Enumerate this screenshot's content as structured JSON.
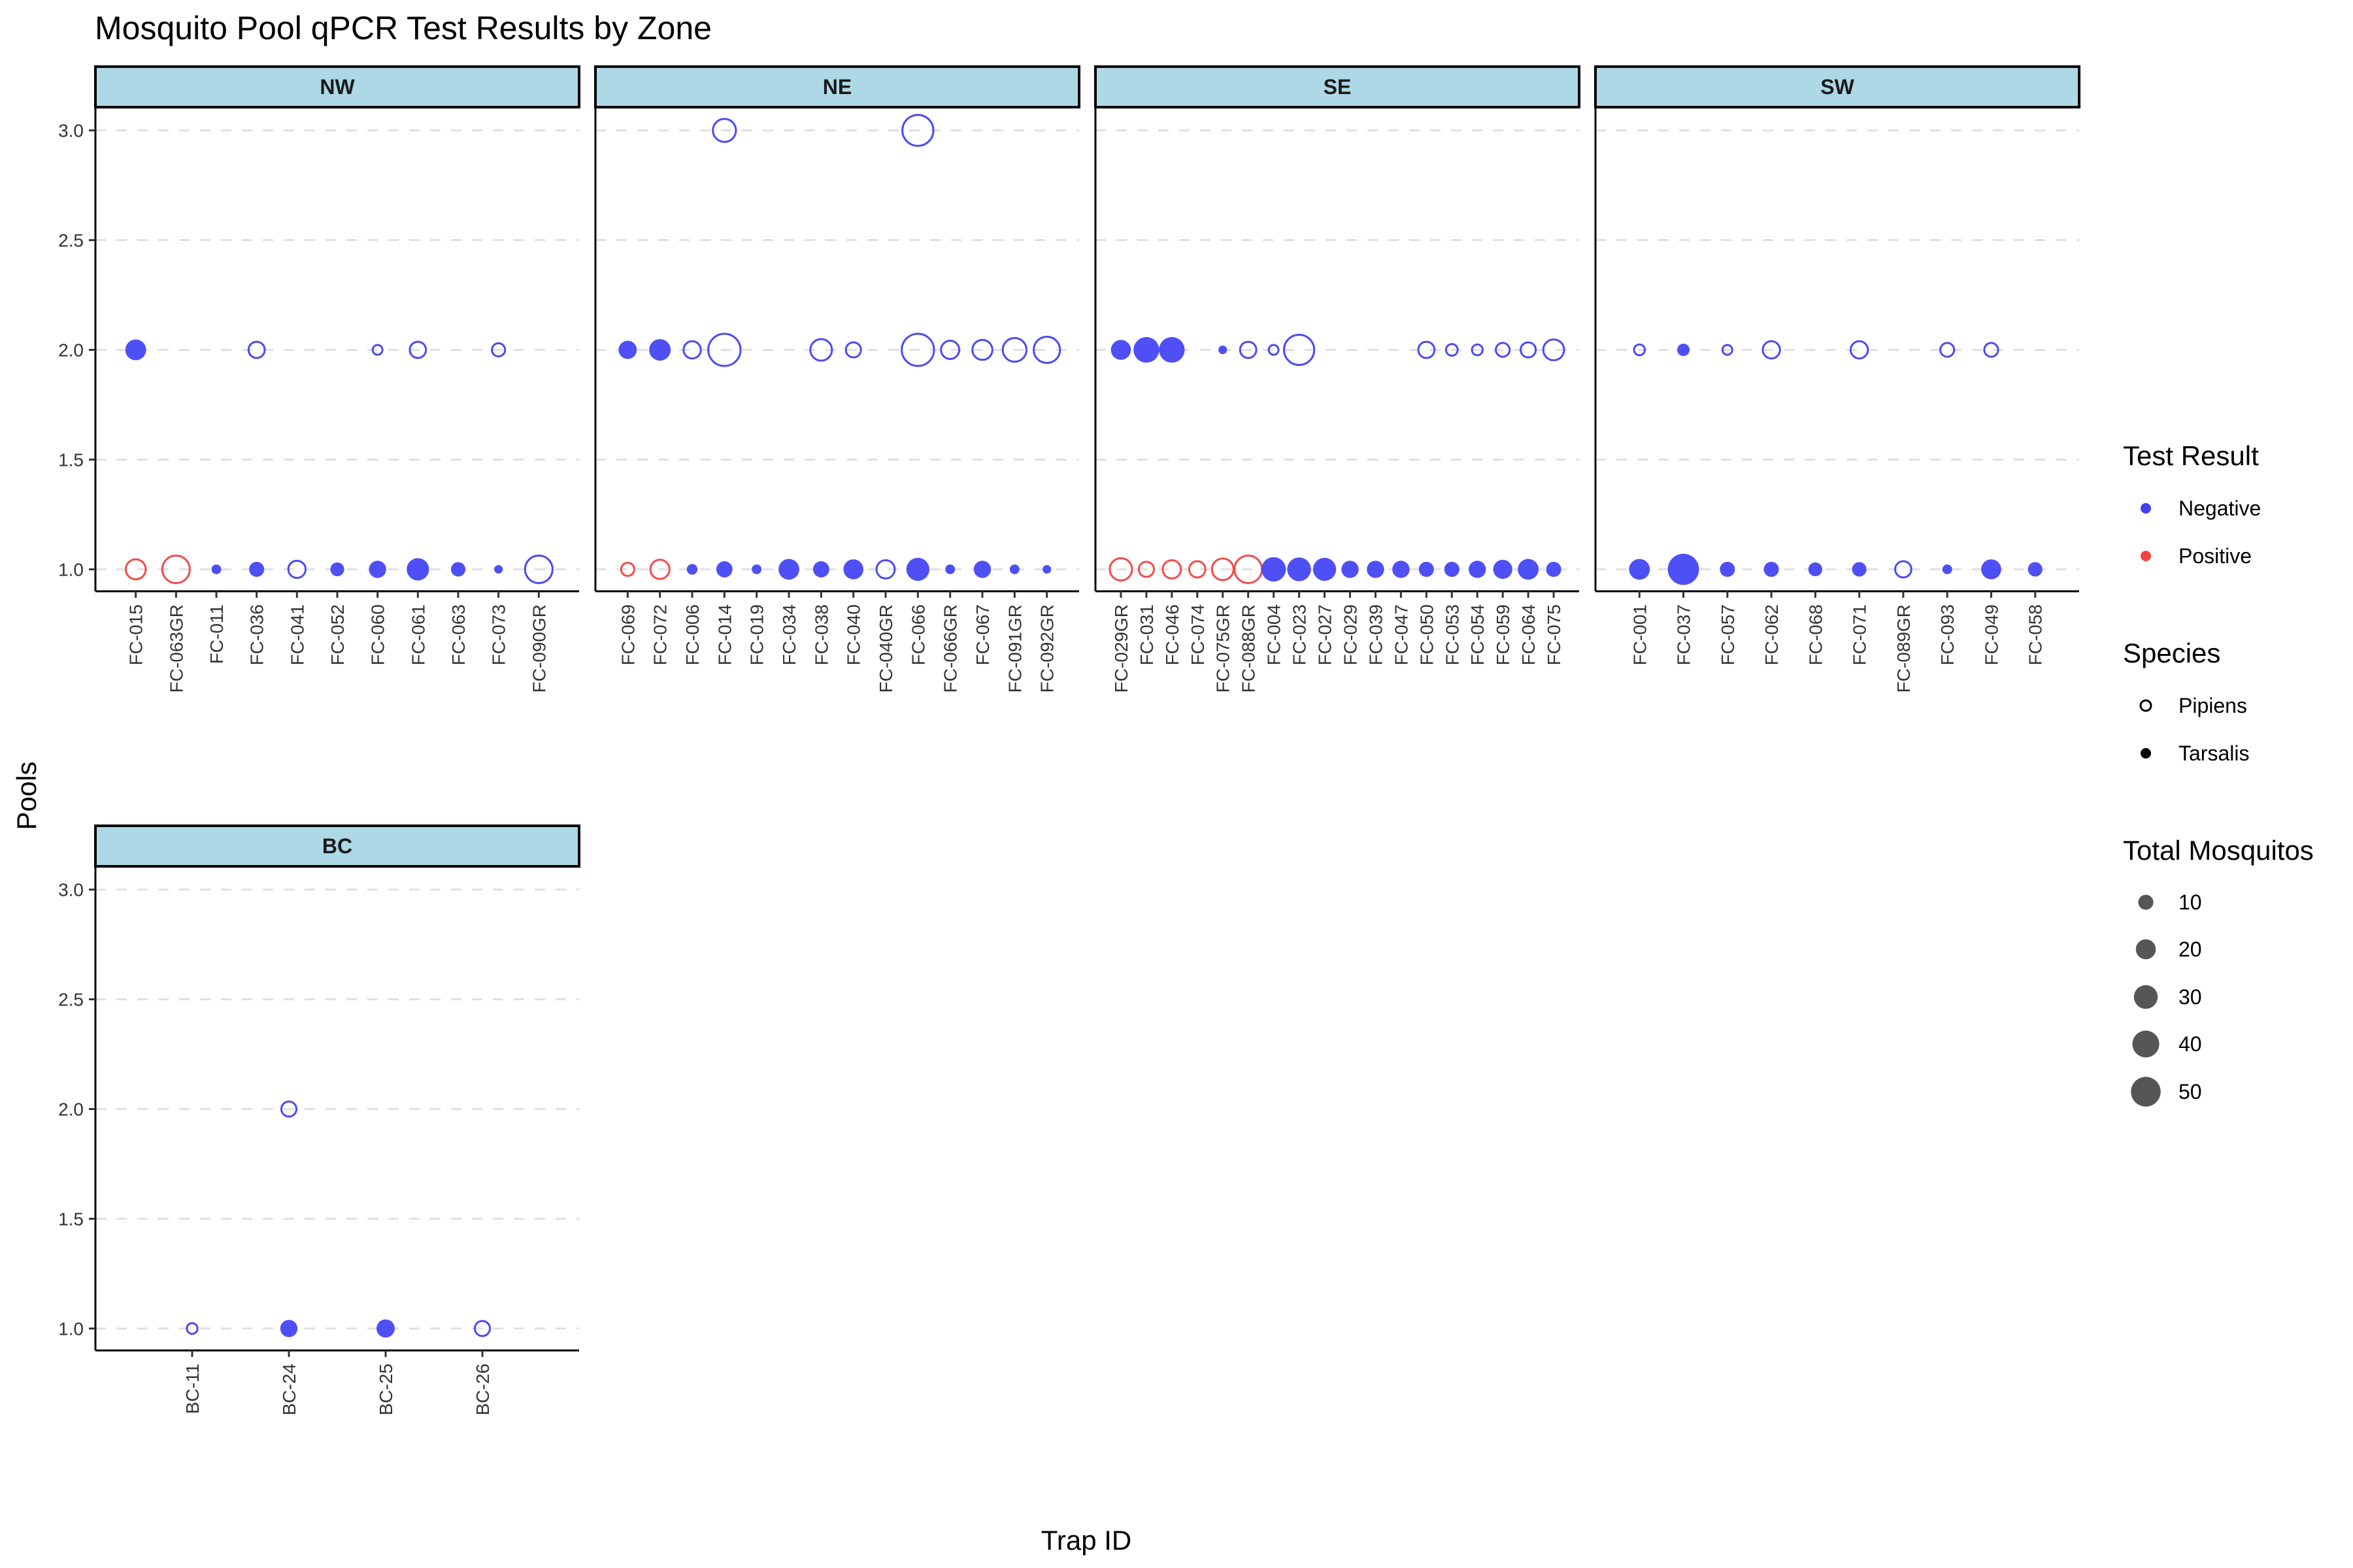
{
  "colors": {
    "Negative": "#4040f5",
    "Positive": "#f54040",
    "strip_fill": "#add8e6",
    "grid": "#e0e0e0",
    "size_legend": "#4d4d4d"
  },
  "chart_data": {
    "type": "scatter",
    "title": "Mosquito Pool qPCR Test Results by Zone",
    "xlabel": "Trap ID",
    "ylabel": "Pools",
    "ylim": [
      0.9,
      3.1
    ],
    "y_ticks": [
      "1.0",
      "1.5",
      "2.0",
      "2.5",
      "3.0"
    ],
    "grid": "horizontal dashed major lines",
    "legend_position": "right",
    "legends": {
      "result": {
        "title": "Test Result",
        "entries": [
          "Negative",
          "Positive"
        ]
      },
      "species": {
        "title": "Species",
        "entries": [
          "Pipiens",
          "Tarsalis"
        ]
      },
      "size": {
        "title": "Total Mosquitos",
        "entries": [
          10,
          20,
          30,
          40,
          50
        ]
      }
    },
    "panels": [
      {
        "zone": "NW",
        "traps": [
          "FC-015",
          "FC-063GR",
          "FC-011",
          "FC-036",
          "FC-041",
          "FC-052",
          "FC-060",
          "FC-061",
          "FC-063",
          "FC-073",
          "FC-090GR"
        ],
        "points": [
          {
            "trap": "FC-015",
            "pools": 2,
            "total": 22,
            "species": "Tarsalis",
            "result": "Negative"
          },
          {
            "trap": "FC-036",
            "pools": 2,
            "total": 12,
            "species": "Pipiens",
            "result": "Negative"
          },
          {
            "trap": "FC-060",
            "pools": 2,
            "total": 3,
            "species": "Pipiens",
            "result": "Negative"
          },
          {
            "trap": "FC-061",
            "pools": 2,
            "total": 12,
            "species": "Pipiens",
            "result": "Negative"
          },
          {
            "trap": "FC-073",
            "pools": 2,
            "total": 7,
            "species": "Pipiens",
            "result": "Negative"
          },
          {
            "trap": "FC-015",
            "pools": 1,
            "total": 20,
            "species": "Pipiens",
            "result": "Positive"
          },
          {
            "trap": "FC-063GR",
            "pools": 1,
            "total": 42,
            "species": "Pipiens",
            "result": "Positive"
          },
          {
            "trap": "FC-011",
            "pools": 1,
            "total": 3,
            "species": "Tarsalis",
            "result": "Negative"
          },
          {
            "trap": "FC-036",
            "pools": 1,
            "total": 10,
            "species": "Tarsalis",
            "result": "Negative"
          },
          {
            "trap": "FC-041",
            "pools": 1,
            "total": 14,
            "species": "Pipiens",
            "result": "Negative"
          },
          {
            "trap": "FC-052",
            "pools": 1,
            "total": 8,
            "species": "Tarsalis",
            "result": "Negative"
          },
          {
            "trap": "FC-060",
            "pools": 1,
            "total": 14,
            "species": "Tarsalis",
            "result": "Negative"
          },
          {
            "trap": "FC-061",
            "pools": 1,
            "total": 26,
            "species": "Tarsalis",
            "result": "Negative"
          },
          {
            "trap": "FC-063",
            "pools": 1,
            "total": 9,
            "species": "Tarsalis",
            "result": "Negative"
          },
          {
            "trap": "FC-073",
            "pools": 1,
            "total": 2,
            "species": "Tarsalis",
            "result": "Negative"
          },
          {
            "trap": "FC-090GR",
            "pools": 1,
            "total": 42,
            "species": "Pipiens",
            "result": "Negative"
          }
        ]
      },
      {
        "zone": "NE",
        "traps": [
          "FC-069",
          "FC-072",
          "FC-006",
          "FC-014",
          "FC-019",
          "FC-034",
          "FC-038",
          "FC-040",
          "FC-040GR",
          "FC-066",
          "FC-066GR",
          "FC-067",
          "FC-091GR",
          "FC-092GR"
        ],
        "points": [
          {
            "trap": "FC-014",
            "pools": 3,
            "total": 28,
            "species": "Pipiens",
            "result": "Negative"
          },
          {
            "trap": "FC-066",
            "pools": 3,
            "total": 55,
            "species": "Pipiens",
            "result": "Negative"
          },
          {
            "trap": "FC-069",
            "pools": 2,
            "total": 16,
            "species": "Tarsalis",
            "result": "Negative"
          },
          {
            "trap": "FC-072",
            "pools": 2,
            "total": 24,
            "species": "Tarsalis",
            "result": "Negative"
          },
          {
            "trap": "FC-006",
            "pools": 2,
            "total": 14,
            "species": "Pipiens",
            "result": "Negative"
          },
          {
            "trap": "FC-014",
            "pools": 2,
            "total": 60,
            "species": "Pipiens",
            "result": "Negative"
          },
          {
            "trap": "FC-038",
            "pools": 2,
            "total": 24,
            "species": "Pipiens",
            "result": "Negative"
          },
          {
            "trap": "FC-040",
            "pools": 2,
            "total": 10,
            "species": "Pipiens",
            "result": "Negative"
          },
          {
            "trap": "FC-066",
            "pools": 2,
            "total": 60,
            "species": "Pipiens",
            "result": "Negative"
          },
          {
            "trap": "FC-066GR",
            "pools": 2,
            "total": 16,
            "species": "Pipiens",
            "result": "Negative"
          },
          {
            "trap": "FC-067",
            "pools": 2,
            "total": 20,
            "species": "Pipiens",
            "result": "Negative"
          },
          {
            "trap": "FC-091GR",
            "pools": 2,
            "total": 30,
            "species": "Pipiens",
            "result": "Negative"
          },
          {
            "trap": "FC-092GR",
            "pools": 2,
            "total": 38,
            "species": "Pipiens",
            "result": "Negative"
          },
          {
            "trap": "FC-069",
            "pools": 1,
            "total": 7,
            "species": "Pipiens",
            "result": "Positive"
          },
          {
            "trap": "FC-072",
            "pools": 1,
            "total": 18,
            "species": "Pipiens",
            "result": "Positive"
          },
          {
            "trap": "FC-006",
            "pools": 1,
            "total": 4,
            "species": "Tarsalis",
            "result": "Negative"
          },
          {
            "trap": "FC-014",
            "pools": 1,
            "total": 12,
            "species": "Tarsalis",
            "result": "Negative"
          },
          {
            "trap": "FC-019",
            "pools": 1,
            "total": 3,
            "species": "Tarsalis",
            "result": "Negative"
          },
          {
            "trap": "FC-034",
            "pools": 1,
            "total": 22,
            "species": "Tarsalis",
            "result": "Negative"
          },
          {
            "trap": "FC-038",
            "pools": 1,
            "total": 12,
            "species": "Tarsalis",
            "result": "Negative"
          },
          {
            "trap": "FC-040",
            "pools": 1,
            "total": 20,
            "species": "Tarsalis",
            "result": "Negative"
          },
          {
            "trap": "FC-040GR",
            "pools": 1,
            "total": 16,
            "species": "Pipiens",
            "result": "Negative"
          },
          {
            "trap": "FC-066",
            "pools": 1,
            "total": 28,
            "species": "Tarsalis",
            "result": "Negative"
          },
          {
            "trap": "FC-066GR",
            "pools": 1,
            "total": 3,
            "species": "Tarsalis",
            "result": "Negative"
          },
          {
            "trap": "FC-067",
            "pools": 1,
            "total": 14,
            "species": "Tarsalis",
            "result": "Negative"
          },
          {
            "trap": "FC-091GR",
            "pools": 1,
            "total": 3,
            "species": "Tarsalis",
            "result": "Negative"
          },
          {
            "trap": "FC-092GR",
            "pools": 1,
            "total": 2,
            "species": "Tarsalis",
            "result": "Negative"
          }
        ]
      },
      {
        "zone": "SE",
        "traps": [
          "FC-029GR",
          "FC-031",
          "FC-046",
          "FC-074",
          "FC-075GR",
          "FC-088GR",
          "FC-004",
          "FC-023",
          "FC-027",
          "FC-029",
          "FC-039",
          "FC-047",
          "FC-050",
          "FC-053",
          "FC-054",
          "FC-059",
          "FC-064",
          "FC-075"
        ],
        "points": [
          {
            "trap": "FC-029GR",
            "pools": 2,
            "total": 20,
            "species": "Tarsalis",
            "result": "Negative"
          },
          {
            "trap": "FC-031",
            "pools": 2,
            "total": 36,
            "species": "Tarsalis",
            "result": "Negative"
          },
          {
            "trap": "FC-046",
            "pools": 2,
            "total": 36,
            "species": "Tarsalis",
            "result": "Negative"
          },
          {
            "trap": "FC-075GR",
            "pools": 2,
            "total": 2,
            "species": "Tarsalis",
            "result": "Negative"
          },
          {
            "trap": "FC-088GR",
            "pools": 2,
            "total": 12,
            "species": "Pipiens",
            "result": "Negative"
          },
          {
            "trap": "FC-004",
            "pools": 2,
            "total": 3,
            "species": "Pipiens",
            "result": "Negative"
          },
          {
            "trap": "FC-023",
            "pools": 2,
            "total": 52,
            "species": "Pipiens",
            "result": "Negative"
          },
          {
            "trap": "FC-050",
            "pools": 2,
            "total": 12,
            "species": "Pipiens",
            "result": "Negative"
          },
          {
            "trap": "FC-053",
            "pools": 2,
            "total": 5,
            "species": "Pipiens",
            "result": "Negative"
          },
          {
            "trap": "FC-054",
            "pools": 2,
            "total": 4,
            "species": "Pipiens",
            "result": "Negative"
          },
          {
            "trap": "FC-059",
            "pools": 2,
            "total": 8,
            "species": "Pipiens",
            "result": "Negative"
          },
          {
            "trap": "FC-064",
            "pools": 2,
            "total": 10,
            "species": "Pipiens",
            "result": "Negative"
          },
          {
            "trap": "FC-075",
            "pools": 2,
            "total": 22,
            "species": "Pipiens",
            "result": "Negative"
          },
          {
            "trap": "FC-029GR",
            "pools": 1,
            "total": 26,
            "species": "Pipiens",
            "result": "Positive"
          },
          {
            "trap": "FC-031",
            "pools": 1,
            "total": 10,
            "species": "Pipiens",
            "result": "Positive"
          },
          {
            "trap": "FC-046",
            "pools": 1,
            "total": 16,
            "species": "Pipiens",
            "result": "Positive"
          },
          {
            "trap": "FC-074",
            "pools": 1,
            "total": 12,
            "species": "Pipiens",
            "result": "Positive"
          },
          {
            "trap": "FC-075GR",
            "pools": 1,
            "total": 24,
            "species": "Pipiens",
            "result": "Positive"
          },
          {
            "trap": "FC-088GR",
            "pools": 1,
            "total": 42,
            "species": "Pipiens",
            "result": "Positive"
          },
          {
            "trap": "FC-004",
            "pools": 1,
            "total": 32,
            "species": "Tarsalis",
            "result": "Negative"
          },
          {
            "trap": "FC-023",
            "pools": 1,
            "total": 30,
            "species": "Tarsalis",
            "result": "Negative"
          },
          {
            "trap": "FC-027",
            "pools": 1,
            "total": 28,
            "species": "Tarsalis",
            "result": "Negative"
          },
          {
            "trap": "FC-029",
            "pools": 1,
            "total": 14,
            "species": "Tarsalis",
            "result": "Negative"
          },
          {
            "trap": "FC-039",
            "pools": 1,
            "total": 14,
            "species": "Tarsalis",
            "result": "Negative"
          },
          {
            "trap": "FC-047",
            "pools": 1,
            "total": 14,
            "species": "Tarsalis",
            "result": "Negative"
          },
          {
            "trap": "FC-050",
            "pools": 1,
            "total": 10,
            "species": "Tarsalis",
            "result": "Negative"
          },
          {
            "trap": "FC-053",
            "pools": 1,
            "total": 10,
            "species": "Tarsalis",
            "result": "Negative"
          },
          {
            "trap": "FC-054",
            "pools": 1,
            "total": 14,
            "species": "Tarsalis",
            "result": "Negative"
          },
          {
            "trap": "FC-059",
            "pools": 1,
            "total": 18,
            "species": "Tarsalis",
            "result": "Negative"
          },
          {
            "trap": "FC-064",
            "pools": 1,
            "total": 22,
            "species": "Tarsalis",
            "result": "Negative"
          },
          {
            "trap": "FC-075",
            "pools": 1,
            "total": 10,
            "species": "Tarsalis",
            "result": "Negative"
          }
        ]
      },
      {
        "zone": "SW",
        "traps": [
          "FC-001",
          "FC-037",
          "FC-057",
          "FC-062",
          "FC-068",
          "FC-071",
          "FC-089GR",
          "FC-093",
          "FC-049",
          "FC-058"
        ],
        "points": [
          {
            "trap": "FC-001",
            "pools": 2,
            "total": 4,
            "species": "Pipiens",
            "result": "Negative"
          },
          {
            "trap": "FC-037",
            "pools": 2,
            "total": 6,
            "species": "Tarsalis",
            "result": "Negative"
          },
          {
            "trap": "FC-057",
            "pools": 2,
            "total": 3,
            "species": "Pipiens",
            "result": "Negative"
          },
          {
            "trap": "FC-062",
            "pools": 2,
            "total": 14,
            "species": "Pipiens",
            "result": "Negative"
          },
          {
            "trap": "FC-071",
            "pools": 2,
            "total": 14,
            "species": "Pipiens",
            "result": "Negative"
          },
          {
            "trap": "FC-093",
            "pools": 2,
            "total": 8,
            "species": "Pipiens",
            "result": "Negative"
          },
          {
            "trap": "FC-049",
            "pools": 2,
            "total": 8,
            "species": "Pipiens",
            "result": "Negative"
          },
          {
            "trap": "FC-001",
            "pools": 1,
            "total": 22,
            "species": "Tarsalis",
            "result": "Negative"
          },
          {
            "trap": "FC-037",
            "pools": 1,
            "total": 56,
            "species": "Tarsalis",
            "result": "Negative"
          },
          {
            "trap": "FC-057",
            "pools": 1,
            "total": 10,
            "species": "Tarsalis",
            "result": "Negative"
          },
          {
            "trap": "FC-062",
            "pools": 1,
            "total": 10,
            "species": "Tarsalis",
            "result": "Negative"
          },
          {
            "trap": "FC-068",
            "pools": 1,
            "total": 8,
            "species": "Tarsalis",
            "result": "Negative"
          },
          {
            "trap": "FC-071",
            "pools": 1,
            "total": 9,
            "species": "Tarsalis",
            "result": "Negative"
          },
          {
            "trap": "FC-089GR",
            "pools": 1,
            "total": 12,
            "species": "Pipiens",
            "result": "Negative"
          },
          {
            "trap": "FC-093",
            "pools": 1,
            "total": 3,
            "species": "Tarsalis",
            "result": "Negative"
          },
          {
            "trap": "FC-049",
            "pools": 1,
            "total": 20,
            "species": "Tarsalis",
            "result": "Negative"
          },
          {
            "trap": "FC-058",
            "pools": 1,
            "total": 9,
            "species": "Tarsalis",
            "result": "Negative"
          }
        ]
      },
      {
        "zone": "BC",
        "traps": [
          "BC-11",
          "BC-24",
          "BC-25",
          "BC-26"
        ],
        "points": [
          {
            "trap": "BC-24",
            "pools": 2,
            "total": 10,
            "species": "Pipiens",
            "result": "Negative"
          },
          {
            "trap": "BC-11",
            "pools": 1,
            "total": 4,
            "species": "Pipiens",
            "result": "Negative"
          },
          {
            "trap": "BC-24",
            "pools": 1,
            "total": 14,
            "species": "Tarsalis",
            "result": "Negative"
          },
          {
            "trap": "BC-25",
            "pools": 1,
            "total": 16,
            "species": "Tarsalis",
            "result": "Negative"
          },
          {
            "trap": "BC-26",
            "pools": 1,
            "total": 10,
            "species": "Pipiens",
            "result": "Negative"
          }
        ]
      }
    ]
  }
}
